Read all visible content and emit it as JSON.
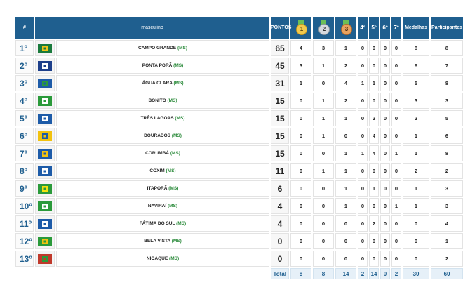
{
  "header": {
    "rank": "#",
    "category": "masculino",
    "points": "PONTOS",
    "gold": "1",
    "silver": "2",
    "bronze": "3",
    "p4": "4º",
    "p5": "5º",
    "p6": "6º",
    "p7": "7º",
    "medals": "Medalhas",
    "participants": "Participantes"
  },
  "rows": [
    {
      "pos": "1º",
      "city": "CAMPO GRANDE",
      "state": "(MS)",
      "points": "65",
      "gold": "4",
      "silver": "3",
      "bronze": "1",
      "p4": "0",
      "p5": "0",
      "p6": "0",
      "p7": "0",
      "medals": "8",
      "participants": "8"
    },
    {
      "pos": "2º",
      "city": "PONTA PORÃ",
      "state": "(MS)",
      "points": "45",
      "gold": "3",
      "silver": "1",
      "bronze": "2",
      "p4": "0",
      "p5": "0",
      "p6": "0",
      "p7": "0",
      "medals": "6",
      "participants": "7"
    },
    {
      "pos": "3º",
      "city": "ÁGUA CLARA",
      "state": "(MS)",
      "points": "31",
      "gold": "1",
      "silver": "0",
      "bronze": "4",
      "p4": "1",
      "p5": "1",
      "p6": "0",
      "p7": "0",
      "medals": "5",
      "participants": "8"
    },
    {
      "pos": "4º",
      "city": "BONITO",
      "state": "(MS)",
      "points": "15",
      "gold": "0",
      "silver": "1",
      "bronze": "2",
      "p4": "0",
      "p5": "0",
      "p6": "0",
      "p7": "0",
      "medals": "3",
      "participants": "3"
    },
    {
      "pos": "5º",
      "city": "TRÊS LAGOAS",
      "state": "(MS)",
      "points": "15",
      "gold": "0",
      "silver": "1",
      "bronze": "1",
      "p4": "0",
      "p5": "2",
      "p6": "0",
      "p7": "0",
      "medals": "2",
      "participants": "5"
    },
    {
      "pos": "6º",
      "city": "DOURADOS",
      "state": "(MS)",
      "points": "15",
      "gold": "0",
      "silver": "1",
      "bronze": "0",
      "p4": "0",
      "p5": "4",
      "p6": "0",
      "p7": "0",
      "medals": "1",
      "participants": "6"
    },
    {
      "pos": "7º",
      "city": "CORUMBÁ",
      "state": "(MS)",
      "points": "15",
      "gold": "0",
      "silver": "0",
      "bronze": "1",
      "p4": "1",
      "p5": "4",
      "p6": "0",
      "p7": "1",
      "medals": "1",
      "participants": "8"
    },
    {
      "pos": "8º",
      "city": "COXIM",
      "state": "(MS)",
      "points": "11",
      "gold": "0",
      "silver": "1",
      "bronze": "1",
      "p4": "0",
      "p5": "0",
      "p6": "0",
      "p7": "0",
      "medals": "2",
      "participants": "2"
    },
    {
      "pos": "9º",
      "city": "ITAPORÃ",
      "state": "(MS)",
      "points": "6",
      "gold": "0",
      "silver": "0",
      "bronze": "1",
      "p4": "0",
      "p5": "1",
      "p6": "0",
      "p7": "0",
      "medals": "1",
      "participants": "3"
    },
    {
      "pos": "10º",
      "city": "NAVIRAÍ",
      "state": "(MS)",
      "points": "4",
      "gold": "0",
      "silver": "0",
      "bronze": "1",
      "p4": "0",
      "p5": "0",
      "p6": "0",
      "p7": "1",
      "medals": "1",
      "participants": "3"
    },
    {
      "pos": "11º",
      "city": "FÁTIMA DO SUL",
      "state": "(MS)",
      "points": "4",
      "gold": "0",
      "silver": "0",
      "bronze": "0",
      "p4": "0",
      "p5": "2",
      "p6": "0",
      "p7": "0",
      "medals": "0",
      "participants": "4"
    },
    {
      "pos": "12º",
      "city": "BELA VISTA",
      "state": "(MS)",
      "points": "0",
      "gold": "0",
      "silver": "0",
      "bronze": "0",
      "p4": "0",
      "p5": "0",
      "p6": "0",
      "p7": "0",
      "medals": "0",
      "participants": "1"
    },
    {
      "pos": "13º",
      "city": "NIOAQUE",
      "state": "(MS)",
      "points": "0",
      "gold": "0",
      "silver": "0",
      "bronze": "0",
      "p4": "0",
      "p5": "0",
      "p6": "0",
      "p7": "0",
      "medals": "0",
      "participants": "2"
    }
  ],
  "flags": [
    {
      "icon": "campo-grande-flag-icon",
      "bg": "#1a7a3c",
      "fg": "#f0c419"
    },
    {
      "icon": "ponta-pora-flag-icon",
      "bg": "#1d3f8a",
      "fg": "#ffffff"
    },
    {
      "icon": "agua-clara-flag-icon",
      "bg": "#1d5ba8",
      "fg": "#2a9a3a"
    },
    {
      "icon": "bonito-flag-icon",
      "bg": "#2a9a3a",
      "fg": "#ffffff"
    },
    {
      "icon": "tres-lagoas-flag-icon",
      "bg": "#1d5ba8",
      "fg": "#ffffff"
    },
    {
      "icon": "dourados-flag-icon",
      "bg": "#f2c20f",
      "fg": "#1d5ba8"
    },
    {
      "icon": "corumba-flag-icon",
      "bg": "#1d5ba8",
      "fg": "#f2c20f"
    },
    {
      "icon": "coxim-flag-icon",
      "bg": "#1d5ba8",
      "fg": "#ffffff"
    },
    {
      "icon": "itapora-flag-icon",
      "bg": "#2a9a3a",
      "fg": "#f2e20f"
    },
    {
      "icon": "navirai-flag-icon",
      "bg": "#2a9a3a",
      "fg": "#ffffff"
    },
    {
      "icon": "fatima-do-sul-flag-icon",
      "bg": "#1d5ba8",
      "fg": "#ffffff"
    },
    {
      "icon": "bela-vista-flag-icon",
      "bg": "#2a9a3a",
      "fg": "#f2c20f"
    },
    {
      "icon": "nioaque-flag-icon",
      "bg": "#c0392b",
      "fg": "#2a9a3a"
    }
  ],
  "total": {
    "label": "Total",
    "gold": "8",
    "silver": "8",
    "bronze": "14",
    "p4": "2",
    "p5": "14",
    "p6": "0",
    "p7": "2",
    "medals": "30",
    "participants": "60"
  },
  "colors": {
    "header_bg": "#1f5f8f",
    "state_text": "#2a8a3a",
    "gold": "#f2c94c",
    "silver": "#d5d9de",
    "bronze": "#e8a25f",
    "total_bg": "#e6f0f8"
  }
}
